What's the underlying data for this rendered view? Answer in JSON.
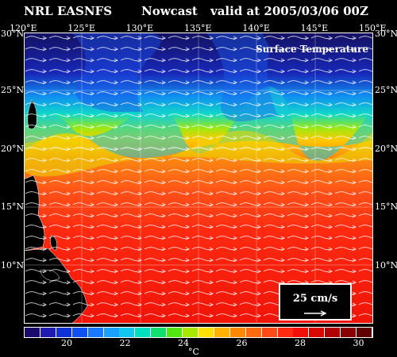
{
  "header": {
    "source": "NRL EASNFS",
    "product": "Nowcast",
    "valid": "valid at 2005/03/06 00Z"
  },
  "map": {
    "field_label": "Surface Temperature",
    "lon_labels": [
      "120°E",
      "125°E",
      "130°E",
      "135°E",
      "140°E",
      "145°E",
      "150°E"
    ],
    "lat_labels": [
      "30°N",
      "25°N",
      "20°N",
      "15°N",
      "10°N"
    ],
    "lon_range": [
      120,
      150
    ],
    "lat_range": [
      5,
      30
    ],
    "vectors": "surface current arrows (white)"
  },
  "scale": {
    "label": "25 cm/s"
  },
  "colorbar": {
    "ticks": [
      "20",
      "22",
      "24",
      "26",
      "28",
      "30"
    ],
    "unit": "°C",
    "colors": [
      "#1a0a6e",
      "#1f1bb0",
      "#1030d8",
      "#1050f0",
      "#1a78ff",
      "#1aa0ff",
      "#10c8f0",
      "#00e0c0",
      "#10e070",
      "#50e810",
      "#a8e800",
      "#ffe000",
      "#ffb000",
      "#ff8800",
      "#ff6a10",
      "#ff4a18",
      "#ff2a10",
      "#f01008",
      "#d80800",
      "#b00000",
      "#880000",
      "#600000"
    ]
  }
}
